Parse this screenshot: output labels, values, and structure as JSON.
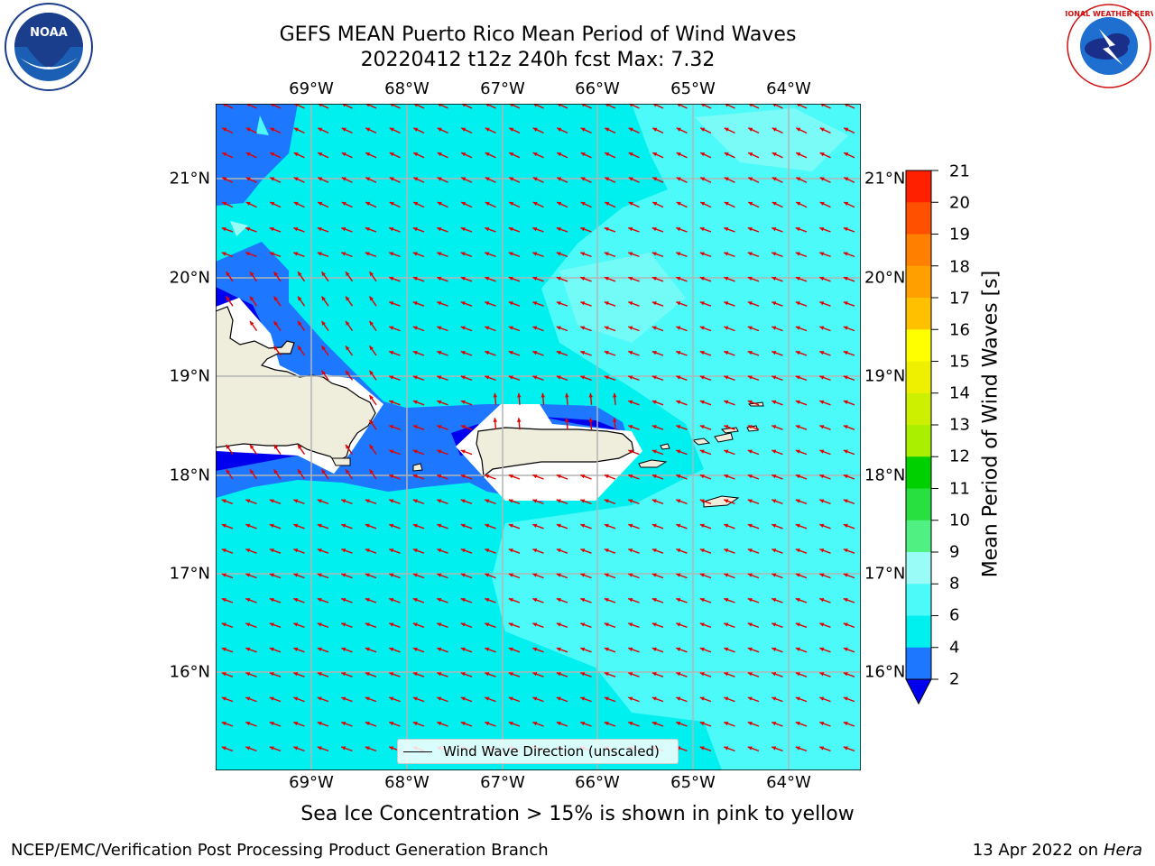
{
  "title": {
    "line1": "GEFS MEAN Puerto Rico Mean Period of Wind Waves",
    "line2": "20220412 t12z 240h fcst   Max: 7.32"
  },
  "logos": {
    "left": "NOAA",
    "right": "NATIONAL WEATHER SERVICE"
  },
  "map": {
    "lon_labels": [
      "69°W",
      "68°W",
      "67°W",
      "66°W",
      "65°W",
      "64°W"
    ],
    "lat_labels": [
      "21°N",
      "20°N",
      "19°N",
      "18°N",
      "17°N",
      "16°N"
    ],
    "legend_label": "Wind Wave Direction (unscaled)"
  },
  "colorbar": {
    "title": "Mean Period of Wind Waves [s]",
    "ticks": [
      "21",
      "20",
      "19",
      "18",
      "17",
      "16",
      "15",
      "14",
      "13",
      "12",
      "11",
      "10",
      "9",
      "8",
      "6",
      "4",
      "2"
    ],
    "colors": {
      "under": "#0000ee",
      "2-4": "#1e78ff",
      "4-6": "#00f0f0",
      "6-8": "#4dfafa",
      "8-9": "#9afcf6",
      "9-10": "#50f082",
      "10-11": "#28e040",
      "11-12": "#00d000",
      "12-13": "#aaee00",
      "13-14": "#ccf000",
      "14-15": "#eef000",
      "15-16": "#ffff00",
      "16-17": "#ffc000",
      "17-18": "#ffa000",
      "18-19": "#ff8000",
      "19-20": "#ff5000",
      "20-21": "#ff2000",
      "21+": "#ff0000"
    }
  },
  "colors": {
    "land": "#efeddc",
    "arrow": "#e00000",
    "grid": "#b4b4b4"
  },
  "footer": {
    "note": "Sea Ice Concentration > 15% is shown in pink to yellow",
    "left": "NCEP/EMC/Verification Post Processing Product Generation Branch",
    "right_date": "13 Apr 2022 on ",
    "right_host": "Hera"
  }
}
